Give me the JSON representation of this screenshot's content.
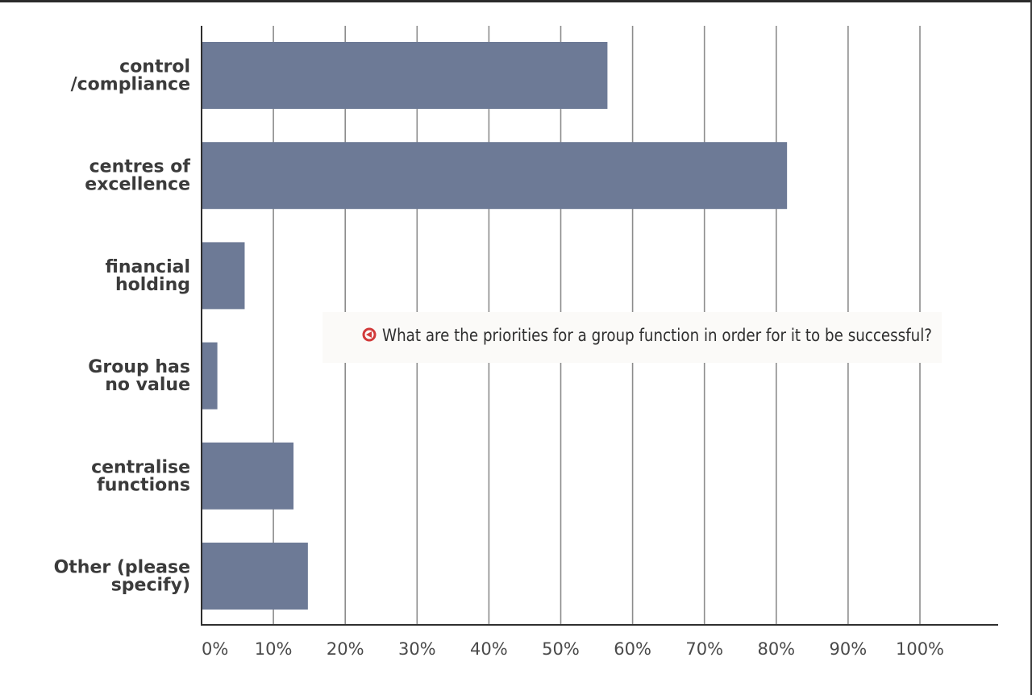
{
  "chart_data": {
    "type": "bar",
    "orientation": "horizontal",
    "title": "",
    "xlabel": "",
    "ylabel": "",
    "categories": [
      [
        "control",
        "/compliance"
      ],
      [
        "centres of",
        "excellence"
      ],
      [
        "financial",
        "holding"
      ],
      [
        "Group has",
        "no value"
      ],
      [
        "centralise",
        "functions"
      ],
      [
        "Other (please",
        "specify)"
      ]
    ],
    "values": [
      56.5,
      81.5,
      6,
      2.2,
      12.8,
      14.8
    ],
    "xlim": [
      0,
      100
    ],
    "xticks": [
      0,
      10,
      20,
      30,
      40,
      50,
      60,
      70,
      80,
      90,
      100
    ],
    "xtick_labels": [
      "0%",
      "10%",
      "20%",
      "30%",
      "40%",
      "50%",
      "60%",
      "70%",
      "80%",
      "90%",
      "100%"
    ],
    "grid": true,
    "bar_color": "#6d7a96",
    "grid_color": "#8c8c8c",
    "annotation": {
      "text": "What are the priorities for a group function in order for it to be successful?",
      "icon": "red-left-arrow-circle-icon",
      "icon_color": "#d23a3a"
    }
  }
}
